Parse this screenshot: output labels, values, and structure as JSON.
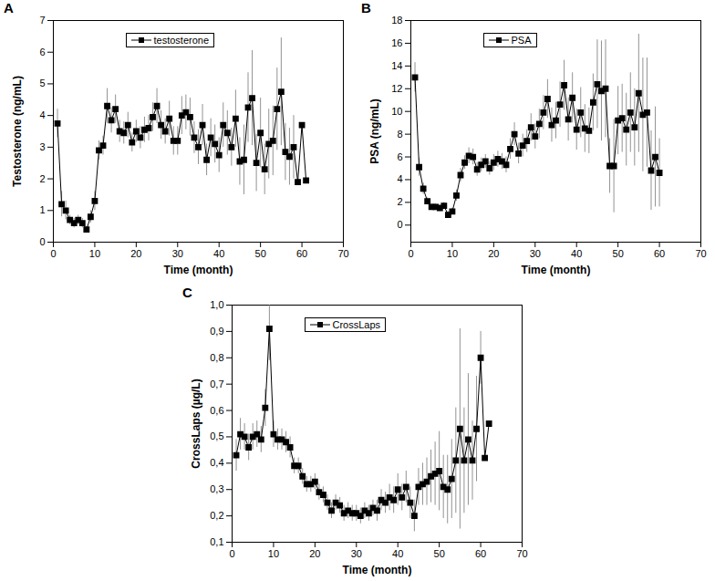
{
  "chart_data": [
    {
      "type": "line",
      "title": "A",
      "x_label": "Time (month)",
      "y_label": "Testosterone (ng/mL)",
      "xlim": [
        0,
        70
      ],
      "xticks": [
        0,
        10,
        20,
        30,
        40,
        50,
        60,
        70
      ],
      "ylim": [
        0,
        7
      ],
      "yticks": [
        0,
        1,
        2,
        3,
        4,
        5,
        6,
        7
      ],
      "legend": "top-left",
      "x": [
        1,
        2,
        3,
        4,
        5,
        6,
        7,
        8,
        9,
        10,
        11,
        12,
        13,
        14,
        15,
        16,
        17,
        18,
        19,
        20,
        21,
        22,
        23,
        24,
        25,
        26,
        27,
        28,
        29,
        30,
        31,
        32,
        33,
        34,
        35,
        36,
        37,
        38,
        39,
        40,
        41,
        42,
        43,
        44,
        45,
        46,
        47,
        48,
        49,
        50,
        51,
        52,
        53,
        54,
        55,
        56,
        57,
        58,
        59,
        60,
        61
      ],
      "series": [
        {
          "name": "testosterone",
          "color": "#000000",
          "marker": "square",
          "values": [
            3.75,
            1.2,
            1.0,
            0.7,
            0.6,
            0.7,
            0.6,
            0.4,
            0.8,
            1.3,
            2.9,
            3.05,
            4.3,
            3.85,
            4.2,
            3.5,
            3.45,
            3.7,
            3.15,
            3.5,
            3.3,
            3.55,
            3.6,
            3.95,
            4.3,
            3.7,
            3.5,
            3.9,
            3.2,
            3.2,
            4.0,
            4.1,
            3.95,
            3.3,
            3.0,
            3.7,
            2.6,
            3.3,
            3.1,
            2.75,
            3.7,
            3.45,
            3.0,
            3.9,
            2.55,
            2.6,
            4.25,
            4.55,
            2.5,
            3.45,
            2.3,
            3.1,
            3.2,
            4.2,
            4.75,
            2.85,
            2.7,
            3.0,
            1.9,
            3.7,
            1.95
          ],
          "errors": [
            0.45,
            0.4,
            0.3,
            0.15,
            0.15,
            0.15,
            0.15,
            0.1,
            0.2,
            0.3,
            0.3,
            0.3,
            0.55,
            0.4,
            0.45,
            0.35,
            0.35,
            0.4,
            0.3,
            0.35,
            0.35,
            0.4,
            0.4,
            0.45,
            0.55,
            0.45,
            0.4,
            0.55,
            0.45,
            0.45,
            0.6,
            0.55,
            0.6,
            0.5,
            0.55,
            0.65,
            0.5,
            0.6,
            0.6,
            0.55,
            0.7,
            0.7,
            0.6,
            0.9,
            0.75,
            1.1,
            1.1,
            1.5,
            0.9,
            1.1,
            0.8,
            1.1,
            1.1,
            1.3,
            1.7,
            0.9,
            0.9,
            1.0,
            null,
            null,
            null
          ]
        }
      ]
    },
    {
      "type": "line",
      "title": "B",
      "x_label": "Time (month)",
      "y_label": "PSA (ng/mL)",
      "xlim": [
        0,
        70
      ],
      "xticks": [
        0,
        10,
        20,
        30,
        40,
        50,
        60,
        70
      ],
      "ylim": [
        -1.5,
        18
      ],
      "yticks": [
        0,
        2,
        4,
        6,
        8,
        10,
        12,
        14,
        16,
        18
      ],
      "legend": "top-left",
      "x": [
        1,
        2,
        3,
        4,
        5,
        6,
        7,
        8,
        9,
        10,
        11,
        12,
        13,
        14,
        15,
        16,
        17,
        18,
        19,
        20,
        21,
        22,
        23,
        24,
        25,
        26,
        27,
        28,
        29,
        30,
        31,
        32,
        33,
        34,
        35,
        36,
        37,
        38,
        39,
        40,
        41,
        42,
        43,
        44,
        45,
        46,
        47,
        48,
        49,
        50,
        51,
        52,
        53,
        54,
        55,
        56,
        57,
        58,
        59,
        60
      ],
      "series": [
        {
          "name": "PSA",
          "color": "#000000",
          "marker": "square",
          "values": [
            13.0,
            5.1,
            3.2,
            2.1,
            1.6,
            1.6,
            1.5,
            1.7,
            0.9,
            1.2,
            2.6,
            4.4,
            5.5,
            6.1,
            6.0,
            4.9,
            5.3,
            5.6,
            5.0,
            5.5,
            5.8,
            5.6,
            5.3,
            6.7,
            8.0,
            6.3,
            7.0,
            7.4,
            8.6,
            7.8,
            8.9,
            9.9,
            11.1,
            8.8,
            9.2,
            10.6,
            12.3,
            9.3,
            11.2,
            8.4,
            9.9,
            8.5,
            8.3,
            10.8,
            12.4,
            11.8,
            12.0,
            5.2,
            5.2,
            9.2,
            9.4,
            8.4,
            9.9,
            8.6,
            11.6,
            9.7,
            9.9,
            4.8,
            6.0,
            4.6
          ],
          "errors": [
            1.3,
            0.8,
            0.5,
            0.3,
            0.3,
            0.3,
            0.3,
            0.3,
            0.3,
            0.3,
            0.5,
            0.6,
            0.6,
            0.7,
            0.7,
            0.6,
            0.6,
            0.6,
            0.6,
            0.7,
            0.7,
            0.7,
            0.7,
            0.9,
            1.0,
            0.9,
            1.0,
            1.0,
            1.2,
            1.1,
            1.3,
            1.5,
            1.7,
            1.5,
            1.6,
            2.0,
            2.2,
            1.9,
            2.2,
            1.8,
            2.2,
            2.1,
            2.0,
            2.5,
            3.9,
            4.4,
            4.3,
            2.4,
            4.1,
            3.0,
            3.0,
            3.2,
            3.5,
            3.4,
            5.2,
            5.0,
            4.8,
            3.5,
            4.4,
            3.0
          ]
        }
      ]
    },
    {
      "type": "line",
      "title": "C",
      "x_label": "Time (month)",
      "y_label": "CrossLaps (µg/L)",
      "xlim": [
        0,
        70
      ],
      "xticks": [
        0,
        10,
        20,
        30,
        40,
        50,
        60,
        70
      ],
      "ylim": [
        0.1,
        1.0
      ],
      "yticks": [
        {
          "value": 0.1,
          "label": "0,1"
        },
        {
          "value": 0.2,
          "label": "0,2"
        },
        {
          "value": 0.3,
          "label": "0,3"
        },
        {
          "value": 0.4,
          "label": "0,4"
        },
        {
          "value": 0.5,
          "label": "0,5"
        },
        {
          "value": 0.6,
          "label": "0,6"
        },
        {
          "value": 0.7,
          "label": "0,7"
        },
        {
          "value": 0.8,
          "label": "0,8"
        },
        {
          "value": 0.9,
          "label": "0,9"
        },
        {
          "value": 1.0,
          "label": "1,0"
        }
      ],
      "legend": "top-left",
      "x": [
        1,
        2,
        3,
        4,
        5,
        6,
        7,
        8,
        9,
        10,
        11,
        12,
        13,
        14,
        15,
        16,
        17,
        18,
        19,
        20,
        21,
        22,
        23,
        24,
        25,
        26,
        27,
        28,
        29,
        30,
        31,
        32,
        33,
        34,
        35,
        36,
        37,
        38,
        39,
        40,
        41,
        42,
        43,
        44,
        45,
        46,
        47,
        48,
        49,
        50,
        51,
        52,
        53,
        54,
        55,
        56,
        57,
        58,
        59,
        60,
        61,
        62
      ],
      "series": [
        {
          "name": "CrossLaps",
          "color": "#000000",
          "marker": "square",
          "values": [
            0.43,
            0.51,
            0.5,
            0.46,
            0.5,
            0.51,
            0.49,
            0.61,
            0.91,
            0.51,
            0.49,
            0.49,
            0.48,
            0.46,
            0.39,
            0.39,
            0.35,
            0.32,
            0.32,
            0.33,
            0.29,
            0.28,
            0.25,
            0.22,
            0.25,
            0.24,
            0.21,
            0.22,
            0.21,
            0.21,
            0.2,
            0.22,
            0.21,
            0.23,
            0.22,
            0.26,
            0.25,
            0.27,
            0.26,
            0.3,
            0.27,
            0.31,
            0.25,
            0.2,
            0.31,
            0.32,
            0.33,
            0.35,
            0.36,
            0.37,
            0.31,
            0.3,
            0.34,
            0.41,
            0.53,
            0.41,
            0.49,
            0.41,
            0.53,
            0.8,
            0.42,
            0.55
          ],
          "errors": [
            0.06,
            0.06,
            0.05,
            0.05,
            0.05,
            0.05,
            0.05,
            0.07,
            0.12,
            0.05,
            0.04,
            0.04,
            0.04,
            0.04,
            0.03,
            0.03,
            0.03,
            0.03,
            0.03,
            0.03,
            0.03,
            0.03,
            0.03,
            0.03,
            0.03,
            0.03,
            0.03,
            0.03,
            0.03,
            0.03,
            0.03,
            0.03,
            0.03,
            0.03,
            0.04,
            0.04,
            0.04,
            0.05,
            0.05,
            0.06,
            0.05,
            0.06,
            0.06,
            0.06,
            0.07,
            0.08,
            0.09,
            0.1,
            0.12,
            0.15,
            0.12,
            0.13,
            0.15,
            0.2,
            0.38,
            0.2,
            0.25,
            0.15,
            0.2,
            0.1,
            null,
            null
          ]
        }
      ]
    }
  ]
}
